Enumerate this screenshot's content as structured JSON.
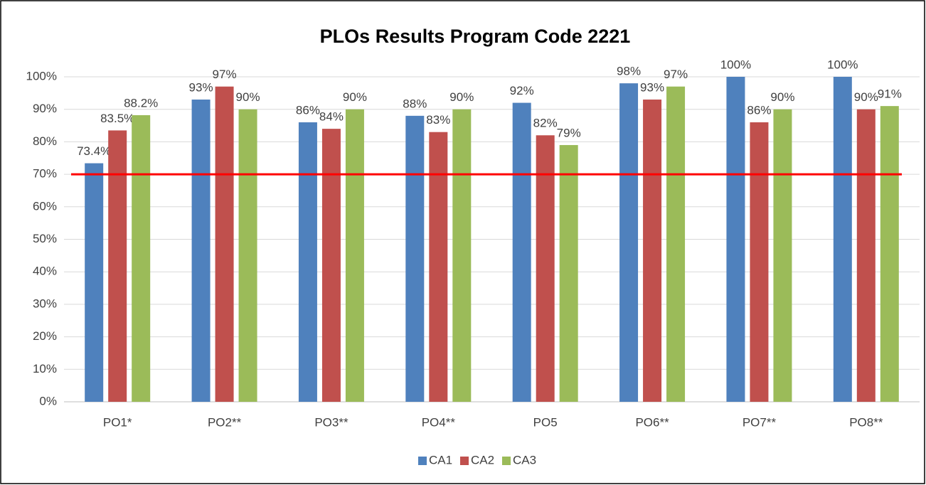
{
  "chart_data": {
    "type": "bar",
    "title": "PLOs Results Program Code 2221",
    "categories": [
      "PO1*",
      "PO2**",
      "PO3**",
      "PO4**",
      "PO5",
      "PO6**",
      "PO7**",
      "PO8**"
    ],
    "series": [
      {
        "name": "CA1",
        "color": "#4f81bd",
        "values": [
          73.4,
          93,
          86,
          88,
          92,
          98,
          100,
          100
        ],
        "value_labels": [
          "73.4%",
          "93%",
          "86%",
          "88%",
          "92%",
          "98%",
          "100%",
          "100%"
        ]
      },
      {
        "name": "CA2",
        "color": "#c0504d",
        "values": [
          83.5,
          97,
          84,
          83,
          82,
          93,
          86,
          90
        ],
        "value_labels": [
          "83.5%",
          "97%",
          "84%",
          "83%",
          "82%",
          "93%",
          "86%",
          "90%"
        ]
      },
      {
        "name": "CA3",
        "color": "#9bbb59",
        "values": [
          88.2,
          90,
          90,
          90,
          79,
          97,
          90,
          91
        ],
        "value_labels": [
          "88.2%",
          "90%",
          "90%",
          "90%",
          "79%",
          "97%",
          "90%",
          "91%"
        ]
      }
    ],
    "ylim": [
      0,
      100
    ],
    "yticks": [
      {
        "value": 0,
        "label": "0%"
      },
      {
        "value": 10,
        "label": "10%"
      },
      {
        "value": 20,
        "label": "20%"
      },
      {
        "value": 30,
        "label": "30%"
      },
      {
        "value": 40,
        "label": "40%"
      },
      {
        "value": 50,
        "label": "50%"
      },
      {
        "value": 60,
        "label": "60%"
      },
      {
        "value": 70,
        "label": "70%"
      },
      {
        "value": 80,
        "label": "80%"
      },
      {
        "value": 90,
        "label": "90%"
      },
      {
        "value": 100,
        "label": "100%"
      }
    ],
    "grid": true,
    "reference_line": {
      "value": 70,
      "color": "#ff0000"
    },
    "legend": "bottom"
  }
}
